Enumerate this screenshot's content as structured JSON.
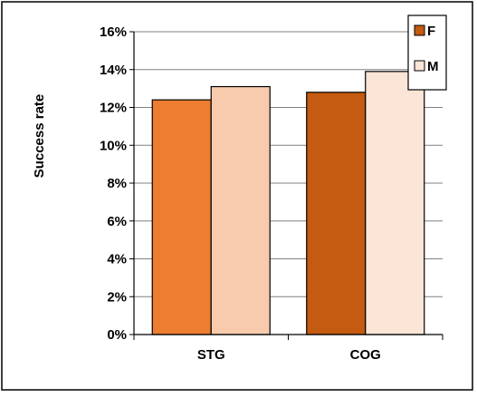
{
  "chart_data": {
    "type": "bar",
    "title": "",
    "xlabel": "",
    "ylabel": "Success rate",
    "ylim": [
      0,
      0.16
    ],
    "yticks": [
      0,
      0.02,
      0.04,
      0.06,
      0.08,
      0.1,
      0.12,
      0.14,
      0.16
    ],
    "ytick_labels": [
      "0%",
      "2%",
      "4%",
      "6%",
      "8%",
      "10%",
      "12%",
      "14%",
      "16%"
    ],
    "categories": [
      "STG",
      "COG"
    ],
    "series": [
      {
        "name": "F",
        "values": [
          0.124,
          0.128
        ],
        "colors": [
          "#ED7D31",
          "#C55A11"
        ]
      },
      {
        "name": "M",
        "values": [
          0.131,
          0.139
        ],
        "colors": [
          "#F8CBAD",
          "#FBE5D6"
        ]
      }
    ],
    "legend": {
      "position": "top-right",
      "entries": [
        {
          "label": "F",
          "color": "#C55A11"
        },
        {
          "label": "M",
          "color": "#FBE5D6"
        }
      ]
    },
    "grid": true,
    "colors": {
      "gridline": "#808080",
      "axis": "#000000",
      "bar_edge": "#000000",
      "frame": "#000000"
    }
  }
}
